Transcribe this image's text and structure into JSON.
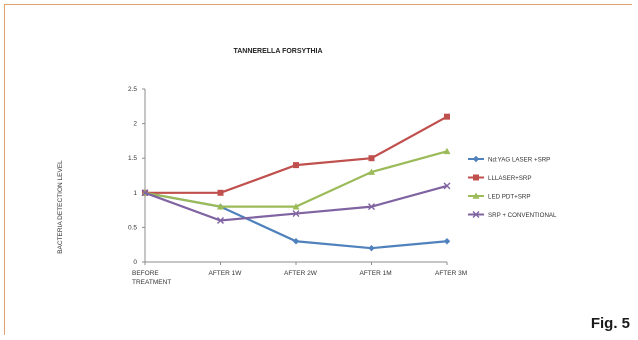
{
  "figure_label": "Fig. 5",
  "chart_data": {
    "type": "line",
    "title": "TANNERELLA FORSYTHIA",
    "xlabel": "",
    "ylabel": "BACTERIA DETECTION LEVEL",
    "categories": [
      [
        "BEFORE",
        "TREATMENT"
      ],
      [
        "AFTER 1W"
      ],
      [
        "AFTER 2W"
      ],
      [
        "AFTER 1M"
      ],
      [
        "AFTER 3M"
      ]
    ],
    "ylim": [
      0,
      2.5
    ],
    "yticks": [
      "0",
      "0.5",
      "1",
      "1.5",
      "2",
      "2.5"
    ],
    "grid": false,
    "legend": "right",
    "series": [
      {
        "name": "Nd:YAG LASER +SRP",
        "color": "#4f81bd",
        "marker": "diamond",
        "values": [
          1.0,
          0.8,
          0.3,
          0.2,
          0.3
        ]
      },
      {
        "name": "LLLASER+SRP",
        "color": "#c0504d",
        "marker": "square",
        "values": [
          1.0,
          1.0,
          1.4,
          1.5,
          2.1
        ]
      },
      {
        "name": "LED PDT+SRP",
        "color": "#9bbb59",
        "marker": "triangle",
        "values": [
          1.0,
          0.8,
          0.8,
          1.3,
          1.6
        ]
      },
      {
        "name": "SRP + CONVENTIONAL",
        "color": "#8064a2",
        "marker": "x",
        "values": [
          1.0,
          0.6,
          0.7,
          0.8,
          1.1
        ]
      }
    ]
  }
}
